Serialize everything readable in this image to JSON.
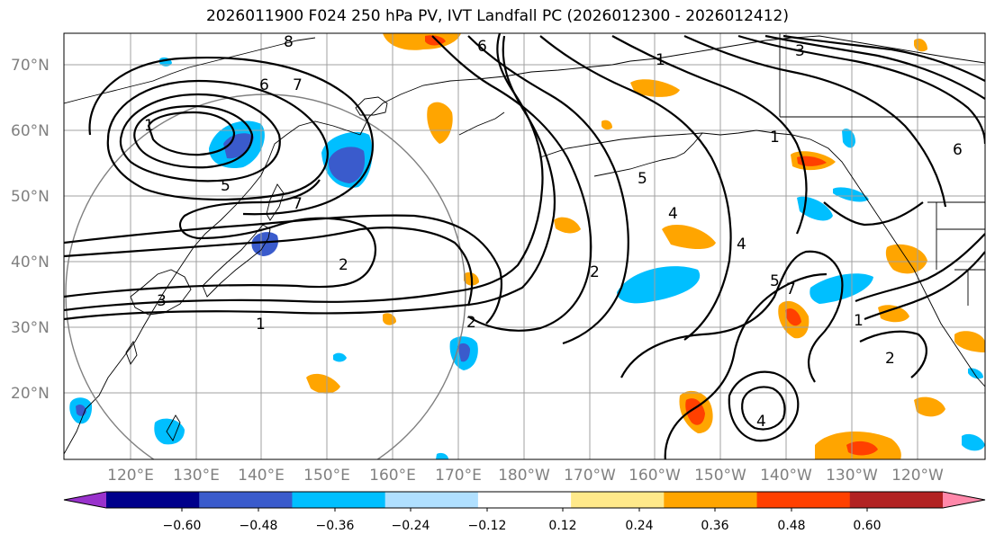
{
  "title": "2026011900 F024 250 hPa PV, IVT Landfall PC (2026012300 - 2026012412)",
  "lat_labels": [
    "20°N",
    "30°N",
    "40°N",
    "50°N",
    "60°N",
    "70°N"
  ],
  "lon_labels": [
    "120°E",
    "130°E",
    "140°E",
    "150°E",
    "160°E",
    "170°E",
    "180°W",
    "170°W",
    "160°W",
    "150°W",
    "140°W",
    "130°W",
    "120°W"
  ],
  "colorbar": {
    "ticks": [
      "−0.60",
      "−0.48",
      "−0.36",
      "−0.24",
      "−0.12",
      "0.12",
      "0.24",
      "0.36",
      "0.48",
      "0.60"
    ],
    "colors": [
      "#9932cc",
      "#00008b",
      "#3a5bcc",
      "#00bfff",
      "#b0e0ff",
      "#ffffff",
      "#ffe98a",
      "#ffa500",
      "#ff4000",
      "#b22222",
      "#ff88aa"
    ]
  },
  "contour_labels": [
    "1",
    "2",
    "3",
    "4",
    "5",
    "6",
    "7",
    "8"
  ],
  "colors": {
    "grid": "#a0a0a0",
    "circle": "#808080",
    "contour": "#000000"
  }
}
